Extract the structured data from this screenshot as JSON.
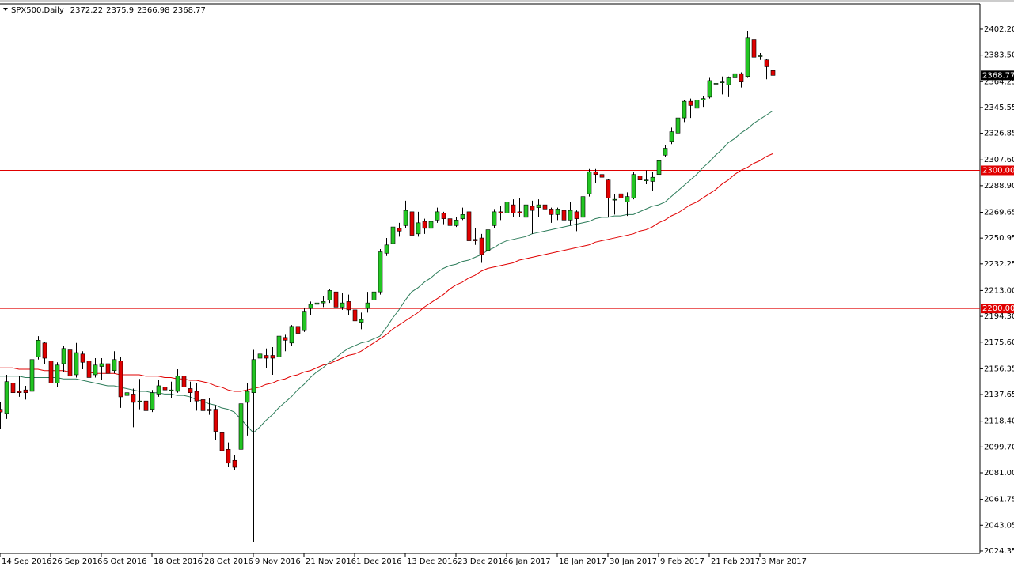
{
  "chart_data": {
    "type": "candlestick",
    "title": "SPX500,Daily",
    "categories": [
      "14 Sep 2016",
      null,
      null,
      null,
      null,
      null,
      null,
      null,
      "26 Sep 2016",
      null,
      null,
      null,
      null,
      null,
      null,
      null,
      "6 Oct 2016",
      null,
      null,
      null,
      null,
      null,
      null,
      null,
      "18 Oct 2016",
      null,
      null,
      null,
      null,
      null,
      null,
      null,
      "28 Oct 2016",
      null,
      null,
      null,
      null,
      null,
      null,
      null,
      "9 Nov 2016",
      null,
      null,
      null,
      null,
      null,
      null,
      null,
      "21 Nov 2016",
      null,
      null,
      null,
      null,
      null,
      null,
      null,
      "1 Dec 2016",
      null,
      null,
      null,
      null,
      null,
      null,
      null,
      "13 Dec 2016",
      null,
      null,
      null,
      null,
      null,
      null,
      null,
      "23 Dec 2016",
      null,
      null,
      null,
      null,
      null,
      null,
      null,
      "6 Jan 2017",
      null,
      null,
      null,
      null,
      null,
      null,
      null,
      "18 Jan 2017",
      null,
      null,
      null,
      null,
      null,
      null,
      null,
      "30 Jan 2017",
      null,
      null,
      null,
      null,
      null,
      null,
      null,
      "9 Feb 2017",
      null,
      null,
      null,
      null,
      null,
      null,
      null,
      "21 Feb 2017",
      null,
      null,
      null,
      null,
      null,
      null,
      null,
      "3 Mar 2017",
      null,
      null
    ],
    "open": [
      2127,
      2124,
      2146,
      2140,
      2141,
      2140,
      2165,
      2175,
      2162,
      2146,
      2160,
      2170,
      2152,
      2167,
      2162,
      2152,
      2158,
      2160,
      2155,
      2162,
      2137,
      2138,
      2133,
      2133,
      2127,
      2138,
      2143,
      2141,
      2140,
      2151,
      2142,
      2140,
      2134,
      2127,
      2127,
      2110,
      2098,
      2090,
      2098,
      2132,
      2139,
      2164,
      2166,
      2166,
      2165,
      2179,
      2175,
      2187,
      2184,
      2200,
      2203,
      2204,
      2206,
      2212,
      2201,
      2205,
      2199,
      2190,
      2200,
      2206,
      2212,
      2240,
      2247,
      2258,
      2260,
      2270,
      2254,
      2263,
      2258,
      2264,
      2269,
      2265,
      2260,
      2265,
      2270,
      2250,
      2251,
      2242,
      2260,
      2270,
      2269,
      2275,
      2270,
      2266,
      2274,
      2273,
      2275,
      2272,
      2268,
      2271,
      2264,
      2270,
      2266,
      2283,
      2299,
      2297,
      2293,
      2279,
      2283,
      2277,
      2280,
      2296,
      2293,
      2292,
      2297,
      2311,
      2321,
      2327,
      2338,
      2350,
      2345,
      2351,
      2353,
      2363,
      2364,
      2362,
      2367,
      2370,
      2368,
      2395,
      2383,
      2380,
      2372.22
    ],
    "high": [
      2132,
      2152,
      2148,
      2151,
      2144,
      2165,
      2180,
      2176,
      2166,
      2161,
      2173,
      2173,
      2175,
      2169,
      2166,
      2164,
      2164,
      2170,
      2169,
      2165,
      2145,
      2142,
      2149,
      2139,
      2141,
      2148,
      2148,
      2147,
      2156,
      2156,
      2147,
      2146,
      2140,
      2135,
      2130,
      2112,
      2103,
      2094,
      2133,
      2146,
      2170,
      2180,
      2171,
      2172,
      2182,
      2181,
      2188,
      2190,
      2200,
      2205,
      2206,
      2209,
      2214,
      2213,
      2211,
      2210,
      2201,
      2197,
      2212,
      2214,
      2243,
      2251,
      2261,
      2262,
      2278,
      2277,
      2270,
      2265,
      2267,
      2273,
      2270,
      2267,
      2266,
      2273,
      2271,
      2258,
      2254,
      2264,
      2272,
      2274,
      2282,
      2279,
      2280,
      2276,
      2278,
      2279,
      2278,
      2273,
      2273,
      2275,
      2277,
      2271,
      2284,
      2301,
      2301,
      2300,
      2294,
      2283,
      2290,
      2284,
      2299,
      2298,
      2300,
      2299,
      2311,
      2318,
      2331,
      2338,
      2351,
      2352,
      2352,
      2354,
      2367,
      2369,
      2368,
      2368,
      2370,
      2371,
      2401,
      2396,
      2385,
      2381,
      2375.9
    ],
    "low": [
      2113,
      2120,
      2134,
      2136,
      2134,
      2137,
      2163,
      2160,
      2144,
      2143,
      2154,
      2146,
      2150,
      2156,
      2145,
      2150,
      2148,
      2145,
      2153,
      2128,
      2131,
      2114,
      2127,
      2122,
      2125,
      2136,
      2133,
      2135,
      2139,
      2141,
      2132,
      2126,
      2119,
      2123,
      2105,
      2094,
      2085,
      2083,
      2096,
      2108,
      2031,
      2160,
      2157,
      2152,
      2163,
      2169,
      2173,
      2179,
      2183,
      2195,
      2195,
      2201,
      2204,
      2197,
      2199,
      2195,
      2186,
      2185,
      2197,
      2199,
      2210,
      2238,
      2245,
      2252,
      2258,
      2250,
      2252,
      2254,
      2256,
      2262,
      2261,
      2255,
      2259,
      2264,
      2249,
      2246,
      2233,
      2241,
      2258,
      2264,
      2265,
      2266,
      2266,
      2262,
      2254,
      2266,
      2268,
      2262,
      2264,
      2258,
      2260,
      2256,
      2264,
      2281,
      2291,
      2290,
      2266,
      2268,
      2273,
      2267,
      2279,
      2287,
      2290,
      2285,
      2295,
      2310,
      2319,
      2323,
      2335,
      2338,
      2337,
      2346,
      2352,
      2357,
      2355,
      2353,
      2362,
      2360,
      2367,
      2380,
      2380,
      2366,
      2366.98
    ],
    "close": [
      2125,
      2147,
      2139,
      2139,
      2139,
      2163,
      2177,
      2164,
      2146,
      2159,
      2171,
      2151,
      2168,
      2161,
      2150,
      2159,
      2160,
      2153,
      2163,
      2136,
      2139,
      2132,
      2133,
      2126,
      2139,
      2144,
      2141,
      2141,
      2151,
      2143,
      2139,
      2133,
      2126,
      2126,
      2111,
      2097,
      2088,
      2085,
      2131,
      2140,
      2163,
      2167,
      2164,
      2164,
      2180,
      2177,
      2187,
      2182,
      2198,
      2203,
      2204,
      2205,
      2213,
      2201,
      2204,
      2199,
      2191,
      2192,
      2204,
      2212,
      2241,
      2246,
      2259,
      2256,
      2271,
      2253,
      2262,
      2258,
      2263,
      2270,
      2265,
      2260,
      2264,
      2268,
      2249,
      2249,
      2239,
      2257,
      2270,
      2269,
      2277,
      2269,
      2269,
      2275,
      2271,
      2275,
      2272,
      2268,
      2272,
      2264,
      2271,
      2265,
      2281,
      2299,
      2297,
      2295,
      2280,
      2279,
      2280,
      2281,
      2297,
      2293,
      2293,
      2295,
      2307,
      2316,
      2328,
      2338,
      2350,
      2347,
      2351,
      2352,
      2365,
      2363,
      2364,
      2367,
      2370,
      2364,
      2396,
      2382,
      2383,
      2375,
      2368.77
    ],
    "up_color": "#22c522",
    "down_color": "#e00000",
    "lines": [
      {
        "color": "#2e7d5b",
        "values": [
          2151,
          2151,
          2151,
          2151,
          2150,
          2150,
          2150,
          2150,
          2150,
          2150,
          2149,
          2149,
          2149,
          2148,
          2147,
          2146,
          2145,
          2144,
          2144,
          2143,
          2142,
          2141,
          2140,
          2140,
          2139,
          2139,
          2138,
          2138,
          2137,
          2137,
          2136,
          2134,
          2133,
          2131,
          2130,
          2128,
          2127,
          2125,
          2120,
          2115,
          2110,
          2114,
          2119,
          2123,
          2128,
          2132,
          2136,
          2141,
          2145,
          2150,
          2154,
          2157,
          2161,
          2164,
          2168,
          2171,
          2173,
          2175,
          2176,
          2178,
          2180,
          2186,
          2193,
          2199,
          2206,
          2212,
          2215,
          2219,
          2222,
          2226,
          2229,
          2231,
          2232,
          2234,
          2235,
          2237,
          2239,
          2242,
          2244,
          2247,
          2249,
          2250,
          2251,
          2252,
          2254,
          2255,
          2256,
          2257,
          2258,
          2259,
          2260,
          2261,
          2262,
          2263,
          2265,
          2266,
          2266,
          2267,
          2267,
          2268,
          2268,
          2270,
          2272,
          2274,
          2275,
          2277,
          2281,
          2285,
          2289,
          2293,
          2297,
          2302,
          2306,
          2311,
          2315,
          2320,
          2323,
          2327,
          2330,
          2334,
          2337,
          2340,
          2343
        ]
      },
      {
        "color": "#e00000",
        "values": [
          2157,
          2157,
          2157,
          2156,
          2156,
          2156,
          2156,
          2155,
          2155,
          2155,
          2155,
          2154,
          2154,
          2154,
          2154,
          2153,
          2153,
          2153,
          2153,
          2152,
          2152,
          2152,
          2152,
          2151,
          2151,
          2151,
          2150,
          2150,
          2149,
          2149,
          2148,
          2148,
          2147,
          2146,
          2144,
          2143,
          2141,
          2140,
          2140,
          2141,
          2142,
          2143,
          2145,
          2146,
          2148,
          2149,
          2151,
          2152,
          2154,
          2155,
          2157,
          2159,
          2160,
          2162,
          2164,
          2166,
          2167,
          2169,
          2172,
          2175,
          2178,
          2181,
          2185,
          2188,
          2191,
          2194,
          2197,
          2201,
          2204,
          2207,
          2210,
          2214,
          2217,
          2219,
          2222,
          2224,
          2227,
          2229,
          2230,
          2231,
          2232,
          2233,
          2235,
          2236,
          2237,
          2238,
          2239,
          2240,
          2241,
          2242,
          2243,
          2244,
          2245,
          2246,
          2248,
          2249,
          2250,
          2251,
          2252,
          2253,
          2254,
          2256,
          2257,
          2259,
          2262,
          2264,
          2267,
          2269,
          2272,
          2275,
          2277,
          2280,
          2283,
          2286,
          2290,
          2293,
          2297,
          2300,
          2302,
          2305,
          2307,
          2310,
          2312
        ]
      }
    ],
    "levels": [
      {
        "value": 2300,
        "label": "2300.00"
      },
      {
        "value": 2200,
        "label": "2200.00"
      }
    ],
    "level_color": "#e00000",
    "last_price": 2368.77,
    "ylim": [
      2022.6,
      2420.5
    ],
    "yticks": [
      {
        "value": 2402.2,
        "label": "2402.20"
      },
      {
        "value": 2383.5,
        "label": "2383.50"
      },
      2364.25,
      2345.55,
      2326.85,
      {
        "value": 2307.6,
        "label": "2307.60"
      },
      {
        "value": 2288.9,
        "label": "2288.90"
      },
      2269.65,
      2250.95,
      2232.25,
      {
        "value": 2213,
        "label": "2213.00"
      },
      {
        "value": 2194.3,
        "label": "2194.30"
      },
      {
        "value": 2175.6,
        "label": "2175.60"
      },
      2156.35,
      2137.65,
      {
        "value": 2118.4,
        "label": "2118.40"
      },
      {
        "value": 2099.7,
        "label": "2099.70"
      },
      {
        "value": 2081,
        "label": "2081.00"
      },
      2061.75,
      2043.05,
      2024.35
    ],
    "grid": false
  }
}
